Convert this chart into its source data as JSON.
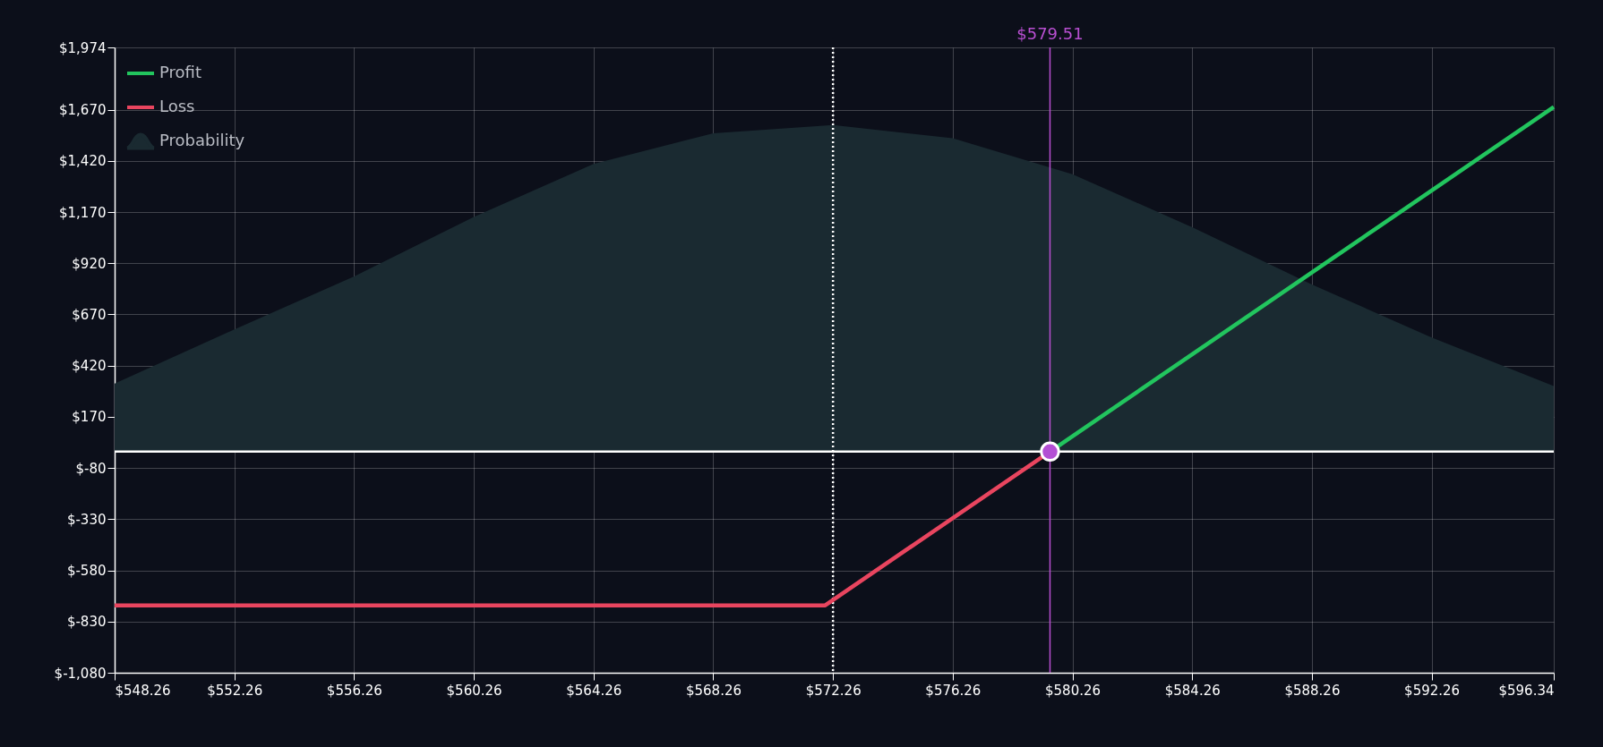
{
  "chart_data": {
    "type": "line",
    "xlim": [
      548.26,
      596.34
    ],
    "ylim": [
      -1080,
      1974
    ],
    "xticks": [
      {
        "value": 548.26,
        "label": "$548.26"
      },
      {
        "value": 552.26,
        "label": "$552.26"
      },
      {
        "value": 556.26,
        "label": "$556.26"
      },
      {
        "value": 560.26,
        "label": "$560.26"
      },
      {
        "value": 564.26,
        "label": "$564.26"
      },
      {
        "value": 568.26,
        "label": "$568.26"
      },
      {
        "value": 572.26,
        "label": "$572.26"
      },
      {
        "value": 576.26,
        "label": "$576.26"
      },
      {
        "value": 580.26,
        "label": "$580.26"
      },
      {
        "value": 584.26,
        "label": "$584.26"
      },
      {
        "value": 588.26,
        "label": "$588.26"
      },
      {
        "value": 592.26,
        "label": "$592.26"
      },
      {
        "value": 596.34,
        "label": "$596.34"
      }
    ],
    "yticks": [
      {
        "value": -1080,
        "label": "$-1,080"
      },
      {
        "value": -830,
        "label": "$-830"
      },
      {
        "value": -580,
        "label": "$-580"
      },
      {
        "value": -330,
        "label": "$-330"
      },
      {
        "value": -80,
        "label": "$-80"
      },
      {
        "value": 170,
        "label": "$170"
      },
      {
        "value": 420,
        "label": "$420"
      },
      {
        "value": 670,
        "label": "$670"
      },
      {
        "value": 920,
        "label": "$920"
      },
      {
        "value": 1170,
        "label": "$1,170"
      },
      {
        "value": 1420,
        "label": "$1,420"
      },
      {
        "value": 1670,
        "label": "$1,670"
      },
      {
        "value": 1974,
        "label": "$1,974"
      }
    ],
    "grid": true,
    "legend": "top left",
    "line_style": "solid",
    "marker": "none",
    "series": [
      {
        "name": "Probability",
        "type": "area",
        "color": "#1a2a31",
        "x": [
          548.26,
          552.26,
          556.26,
          560.26,
          564.26,
          568.26,
          572.26,
          576.26,
          580.26,
          584.26,
          588.26,
          592.26,
          596.34
        ],
        "values": [
          332,
          597,
          856,
          1146,
          1405,
          1555,
          1595,
          1530,
          1355,
          1096,
          816,
          557,
          320
        ]
      },
      {
        "name": "Profit",
        "color": "#22c55e",
        "x": [
          579.51,
          596.34
        ],
        "values": [
          0,
          1683
        ]
      },
      {
        "name": "Loss",
        "color": "#e9455f",
        "x": [
          548.26,
          572,
          579.51
        ],
        "values": [
          -751,
          -751,
          0
        ]
      },
      {
        "type": "scatter",
        "marker": "circle",
        "color": "#b34fd4",
        "x": [
          579.51
        ],
        "values": [
          0
        ]
      }
    ],
    "ref_lines": [
      {
        "axis": "x",
        "value": 572.26,
        "color": "#ffffff",
        "line_style": "dotted"
      },
      {
        "axis": "x",
        "value": 579.51,
        "label": "$579.51",
        "color": "#b84fd1",
        "line_style": "solid"
      },
      {
        "axis": "y",
        "value": 0,
        "color": "#ffffff",
        "line_style": "solid"
      }
    ]
  }
}
